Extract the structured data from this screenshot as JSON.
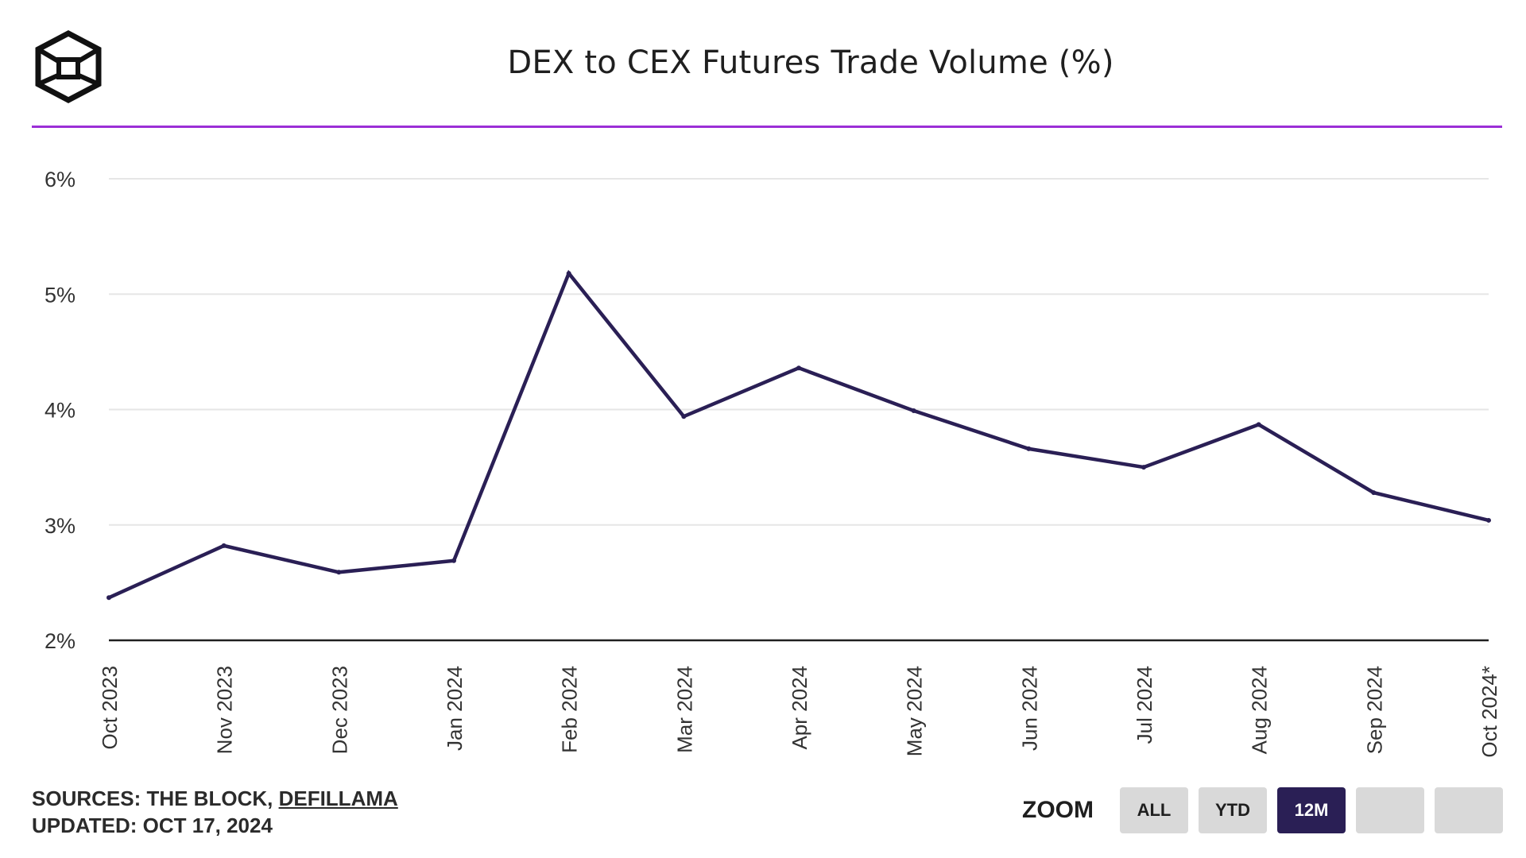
{
  "header": {
    "title": "DEX to CEX Futures Trade Volume (%)"
  },
  "footer": {
    "sources_prefix": "SOURCES: THE BLOCK, ",
    "sources_link": "DEFILLAMA",
    "updated": "UPDATED: OCT 17, 2024"
  },
  "zoom": {
    "label": "ZOOM",
    "buttons": [
      "ALL",
      "YTD",
      "12M",
      "",
      ""
    ],
    "active": "12M"
  },
  "colors": {
    "line": "#2a1f55",
    "accent_rule": "#9b2fd6",
    "grid": "#e6e6e6",
    "axis": "#1f1f1f",
    "button_active": "#2a1f55",
    "button_inactive": "#d9d9d9"
  },
  "chart_data": {
    "type": "line",
    "title": "DEX to CEX Futures Trade Volume (%)",
    "xlabel": "",
    "ylabel": "",
    "categories": [
      "Oct 2023",
      "Nov 2023",
      "Dec 2023",
      "Jan 2024",
      "Feb 2024",
      "Mar 2024",
      "Apr 2024",
      "May 2024",
      "Jun 2024",
      "Jul 2024",
      "Aug 2024",
      "Sep 2024",
      "Oct 2024*"
    ],
    "values": [
      2.37,
      2.82,
      2.59,
      2.69,
      5.18,
      3.94,
      4.36,
      3.99,
      3.66,
      3.5,
      3.87,
      3.28,
      3.04
    ],
    "ylim": [
      2,
      6
    ],
    "yticks": [
      2,
      3,
      4,
      5,
      6
    ],
    "ytick_labels": [
      "2%",
      "3%",
      "4%",
      "5%",
      "6%"
    ],
    "grid": true
  }
}
